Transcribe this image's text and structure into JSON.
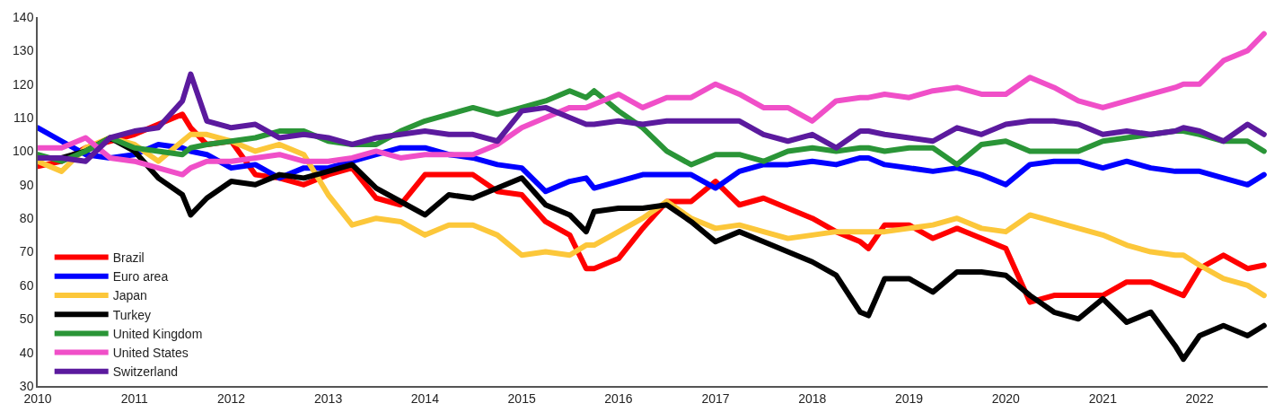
{
  "chart_data": {
    "type": "line",
    "x": [
      "2010-01",
      "2010-04",
      "2010-07",
      "2010-10",
      "2011-01",
      "2011-04",
      "2011-07",
      "2011-08",
      "2011-10",
      "2012-01",
      "2012-04",
      "2012-07",
      "2012-10",
      "2013-01",
      "2013-04",
      "2013-07",
      "2013-10",
      "2014-01",
      "2014-04",
      "2014-07",
      "2014-10",
      "2015-01",
      "2015-04",
      "2015-07",
      "2015-09",
      "2015-10",
      "2016-01",
      "2016-04",
      "2016-07",
      "2016-10",
      "2017-01",
      "2017-04",
      "2017-07",
      "2017-10",
      "2018-01",
      "2018-04",
      "2018-07",
      "2018-08",
      "2018-10",
      "2019-01",
      "2019-04",
      "2019-07",
      "2019-10",
      "2020-01",
      "2020-04",
      "2020-07",
      "2020-10",
      "2021-01",
      "2021-04",
      "2021-07",
      "2021-10",
      "2021-11",
      "2022-01",
      "2022-04",
      "2022-07",
      "2022-09"
    ],
    "series": [
      {
        "name": "Brazil",
        "color": "#ff0000",
        "values": [
          95.5,
          97,
          101,
          103,
          105,
          108,
          111,
          107,
          102,
          103,
          93,
          92,
          90,
          93,
          95,
          86,
          84,
          93,
          93,
          93,
          88,
          87,
          79,
          75,
          65,
          65,
          68,
          77,
          85,
          85,
          91,
          84,
          86,
          83,
          80,
          76,
          73,
          71,
          78,
          78,
          74,
          77,
          74,
          71,
          55,
          57,
          57,
          57,
          61,
          61,
          58,
          57,
          65,
          69,
          65,
          66
        ]
      },
      {
        "name": "Euro area",
        "color": "#0000ff",
        "values": [
          107,
          103,
          99,
          98,
          99,
          102,
          101,
          100,
          99,
          95,
          96,
          92,
          95,
          95,
          97,
          99,
          101,
          101,
          99,
          98,
          96,
          95,
          88,
          91,
          92,
          89,
          91,
          93,
          93,
          93,
          89,
          94,
          96,
          96,
          97,
          96,
          98,
          98,
          96,
          95,
          94,
          95,
          93,
          90,
          96,
          97,
          97,
          95,
          97,
          95,
          94,
          94,
          94,
          92,
          90,
          93
        ]
      },
      {
        "name": "Japan",
        "color": "#fcc73a",
        "values": [
          97,
          94,
          101,
          104,
          102,
          97,
          103,
          105,
          105,
          103,
          100,
          102,
          99,
          87,
          78,
          80,
          79,
          75,
          78,
          78,
          75,
          69,
          70,
          69,
          72,
          72,
          76,
          80,
          85,
          80,
          77,
          78,
          76,
          74,
          75,
          76,
          76,
          76,
          76,
          77,
          78,
          80,
          77,
          76,
          81,
          79,
          77,
          75,
          72,
          70,
          69,
          69,
          66,
          62,
          60,
          57
        ]
      },
      {
        "name": "Turkey",
        "color": "#000000",
        "values": [
          98,
          98,
          100,
          104,
          100,
          92,
          87,
          81,
          86,
          91,
          90,
          93,
          92,
          94,
          96,
          89,
          85,
          81,
          87,
          86,
          89,
          92,
          84,
          81,
          76,
          82,
          83,
          83,
          84,
          79,
          73,
          76,
          73,
          70,
          67,
          63,
          52,
          51,
          62,
          62,
          58,
          64,
          64,
          63,
          57,
          52,
          50,
          56,
          49,
          52,
          42,
          38,
          45,
          48,
          45,
          48
        ]
      },
      {
        "name": "United Kingdom",
        "color": "#2a9537",
        "values": [
          99,
          97,
          100,
          104,
          101,
          100,
          99,
          101,
          102,
          103,
          104,
          106,
          106,
          103,
          102,
          102,
          106,
          109,
          111,
          113,
          111,
          113,
          115,
          118,
          116,
          118,
          112,
          107,
          100,
          96,
          99,
          99,
          97,
          100,
          101,
          100,
          101,
          101,
          100,
          101,
          101,
          96,
          102,
          103,
          100,
          100,
          100,
          103,
          104,
          105,
          106,
          106,
          105,
          103,
          103,
          100
        ]
      },
      {
        "name": "United States",
        "color": "#f04fc8",
        "values": [
          101,
          101,
          104,
          98,
          97,
          95,
          93,
          95,
          97,
          97,
          98,
          99,
          97,
          97,
          98,
          100,
          98,
          99,
          99,
          99,
          102,
          107,
          110,
          113,
          113,
          114,
          117,
          113,
          116,
          116,
          120,
          117,
          113,
          113,
          109,
          115,
          116,
          116,
          117,
          116,
          118,
          119,
          117,
          117,
          122,
          119,
          115,
          113,
          115,
          117,
          119,
          120,
          120,
          127,
          130,
          135
        ]
      },
      {
        "name": "Switzerland",
        "color": "#5b1a9e",
        "values": [
          98,
          98,
          97,
          104,
          106,
          107,
          115,
          123,
          109,
          107,
          108,
          104,
          105,
          104,
          102,
          104,
          105,
          106,
          105,
          105,
          103,
          112,
          113,
          110,
          108,
          108,
          109,
          108,
          109,
          109,
          109,
          109,
          105,
          103,
          105,
          101,
          106,
          106,
          105,
          104,
          103,
          107,
          105,
          108,
          109,
          109,
          108,
          105,
          106,
          105,
          106,
          107,
          106,
          103,
          108,
          105
        ]
      }
    ],
    "xlim": [
      "2010-01-01",
      "2022-09-15"
    ],
    "xticks": [
      "2010",
      "2011",
      "2012",
      "2013",
      "2014",
      "2015",
      "2016",
      "2017",
      "2018",
      "2019",
      "2020",
      "2021",
      "2022"
    ],
    "ylim": [
      30,
      140
    ],
    "yticks": [
      30,
      40,
      50,
      60,
      70,
      80,
      90,
      100,
      110,
      120,
      130,
      140
    ],
    "legend": "bottom left",
    "marker": "none",
    "line_style": "solid"
  }
}
